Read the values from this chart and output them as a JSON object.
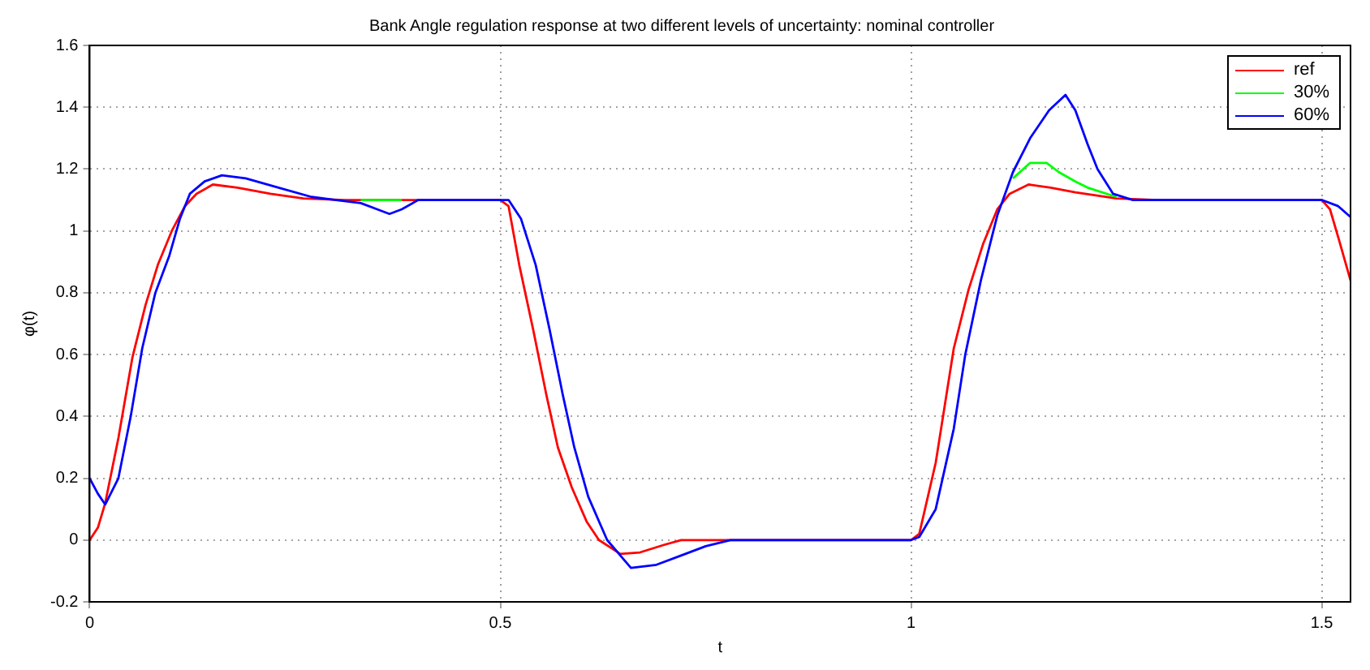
{
  "chart_data": {
    "type": "line",
    "title": "Bank Angle regulation response at two different levels of uncertainty: nominal controller",
    "xlabel": "t",
    "ylabel": "φ(t)",
    "xlim": [
      0,
      1.535
    ],
    "xticks": [
      0,
      0.5,
      1,
      1.5
    ],
    "ylim": [
      -0.2,
      1.6
    ],
    "yticks": [
      -0.2,
      0,
      0.2,
      0.4,
      0.6,
      0.8,
      1,
      1.2,
      1.4,
      1.6
    ],
    "grid": true,
    "legend": "top right",
    "marker": "none",
    "line_style": "solid",
    "series": [
      {
        "name": "ref",
        "color": "#ff0000",
        "x": [
          0,
          0.01,
          0.019,
          0.035,
          0.052,
          0.068,
          0.083,
          0.1,
          0.116,
          0.13,
          0.15,
          0.18,
          0.22,
          0.26,
          0.31,
          0.4,
          0.5,
          0.51,
          0.523,
          0.54,
          0.556,
          0.57,
          0.587,
          0.605,
          0.62,
          0.646,
          0.67,
          0.7,
          0.72,
          0.8,
          0.9,
          1,
          1.01,
          1.03,
          1.052,
          1.07,
          1.088,
          1.105,
          1.12,
          1.143,
          1.17,
          1.2,
          1.25,
          1.3,
          1.4,
          1.5,
          1.51,
          1.52,
          1.535
        ],
        "values": [
          0,
          0.04,
          0.12,
          0.33,
          0.59,
          0.76,
          0.89,
          1.0,
          1.08,
          1.12,
          1.15,
          1.14,
          1.12,
          1.105,
          1.1,
          1.1,
          1.1,
          1.08,
          0.89,
          0.68,
          0.47,
          0.3,
          0.17,
          0.06,
          0.0,
          -0.045,
          -0.04,
          -0.015,
          0,
          0,
          0,
          0,
          0.02,
          0.25,
          0.62,
          0.81,
          0.96,
          1.07,
          1.12,
          1.15,
          1.14,
          1.125,
          1.105,
          1.1,
          1.1,
          1.1,
          1.07,
          0.98,
          0.84
        ]
      },
      {
        "name": "30%",
        "color": "#00ff00",
        "x": [
          0.33,
          0.35,
          0.365,
          0.38,
          0.7,
          1.124,
          1.145,
          1.165,
          1.18,
          1.2,
          1.215,
          1.25
        ],
        "values": [
          1.1,
          1.1,
          1.1,
          1.1,
          null,
          1.17,
          1.22,
          1.22,
          1.19,
          1.16,
          1.14,
          1.11
        ]
      },
      {
        "name": "60%",
        "color": "#0000ff",
        "x": [
          0,
          0.01,
          0.019,
          0.035,
          0.05,
          0.064,
          0.08,
          0.097,
          0.11,
          0.122,
          0.14,
          0.161,
          0.19,
          0.23,
          0.27,
          0.3,
          0.33,
          0.35,
          0.365,
          0.38,
          0.4,
          0.5,
          0.51,
          0.525,
          0.543,
          0.56,
          0.576,
          0.59,
          0.607,
          0.63,
          0.659,
          0.69,
          0.72,
          0.75,
          0.78,
          0.9,
          1,
          1.01,
          1.03,
          1.052,
          1.066,
          1.085,
          1.105,
          1.124,
          1.145,
          1.168,
          1.188,
          1.2,
          1.215,
          1.227,
          1.246,
          1.27,
          1.3,
          1.4,
          1.5,
          1.52,
          1.535
        ],
        "values": [
          0.2,
          0.15,
          0.115,
          0.2,
          0.4,
          0.62,
          0.8,
          0.92,
          1.04,
          1.12,
          1.16,
          1.18,
          1.17,
          1.14,
          1.11,
          1.1,
          1.09,
          1.07,
          1.055,
          1.07,
          1.1,
          1.1,
          1.1,
          1.04,
          0.89,
          0.68,
          0.47,
          0.3,
          0.14,
          0.0,
          -0.09,
          -0.08,
          -0.05,
          -0.02,
          0,
          0,
          0,
          0.01,
          0.1,
          0.36,
          0.6,
          0.84,
          1.05,
          1.19,
          1.3,
          1.39,
          1.44,
          1.39,
          1.28,
          1.2,
          1.12,
          1.1,
          1.1,
          1.1,
          1.1,
          1.08,
          1.045
        ]
      }
    ]
  }
}
